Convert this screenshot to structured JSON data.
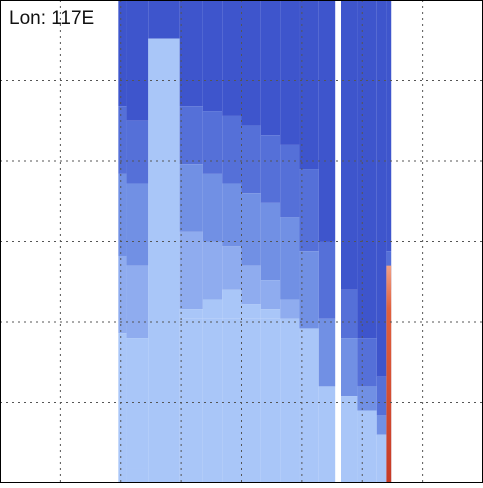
{
  "panel": {
    "label": "Lon: 117E"
  },
  "chart_data": {
    "type": "heatmap",
    "title": "",
    "xlabel": "",
    "ylabel": "",
    "grid": true,
    "gridlines": {
      "x_count": 7,
      "y_count": 5,
      "style": "dotted"
    },
    "colormap": [
      "#3e55cc",
      "#5570d8",
      "#7190e4",
      "#8facef",
      "#a9c6f8",
      "#f0a186",
      "#e0603d",
      "#c63a26"
    ],
    "data_columns": [
      {
        "x_from": 0.245,
        "x_to": 0.262,
        "levels": [
          0.22,
          0.36,
          0.53,
          0.69,
          0.97
        ]
      },
      {
        "x_from": 0.262,
        "x_to": 0.307,
        "levels": [
          0.25,
          0.38,
          0.55,
          0.7,
          0.97
        ]
      },
      {
        "x_from": 0.307,
        "x_to": 0.372,
        "levels": [
          0.08,
          0.08,
          0.08,
          0.08,
          0.08
        ]
      },
      {
        "x_from": 0.372,
        "x_to": 0.42,
        "levels": [
          0.22,
          0.34,
          0.48,
          0.64,
          0.66
        ]
      },
      {
        "x_from": 0.42,
        "x_to": 0.46,
        "levels": [
          0.23,
          0.36,
          0.5,
          0.62,
          0.66
        ]
      },
      {
        "x_from": 0.46,
        "x_to": 0.5,
        "levels": [
          0.24,
          0.38,
          0.51,
          0.6,
          0.66
        ]
      },
      {
        "x_from": 0.5,
        "x_to": 0.54,
        "levels": [
          0.26,
          0.4,
          0.55,
          0.63,
          0.66
        ]
      },
      {
        "x_from": 0.54,
        "x_to": 0.58,
        "levels": [
          0.28,
          0.42,
          0.58,
          0.64,
          0.66
        ]
      },
      {
        "x_from": 0.58,
        "x_to": 0.62,
        "levels": [
          0.3,
          0.45,
          0.62,
          0.66,
          0.66
        ]
      },
      {
        "x_from": 0.62,
        "x_to": 0.66,
        "levels": [
          0.35,
          0.52,
          0.68,
          0.68,
          0.68
        ]
      },
      {
        "x_from": 0.66,
        "x_to": 0.694,
        "levels": [
          0.5,
          0.66,
          0.8,
          0.8,
          0.8
        ]
      },
      {
        "x_from": 0.706,
        "x_to": 0.74,
        "levels": [
          0.6,
          0.7,
          0.82,
          0.82,
          0.82
        ]
      },
      {
        "x_from": 0.74,
        "x_to": 0.78,
        "levels": [
          0.7,
          0.8,
          0.85,
          0.85,
          0.85
        ]
      },
      {
        "x_from": 0.78,
        "x_to": 0.8,
        "levels": [
          0.78,
          0.86,
          0.9,
          0.9,
          0.9
        ]
      },
      {
        "x_from": 0.8,
        "x_to": 0.81,
        "levels": [
          0.52,
          0.56,
          0.6,
          0.6,
          0.6
        ]
      }
    ],
    "hot_strip": {
      "x_from": 0.8,
      "x_to": 0.81,
      "y_from": 0.55,
      "y_to": 1.0
    }
  }
}
